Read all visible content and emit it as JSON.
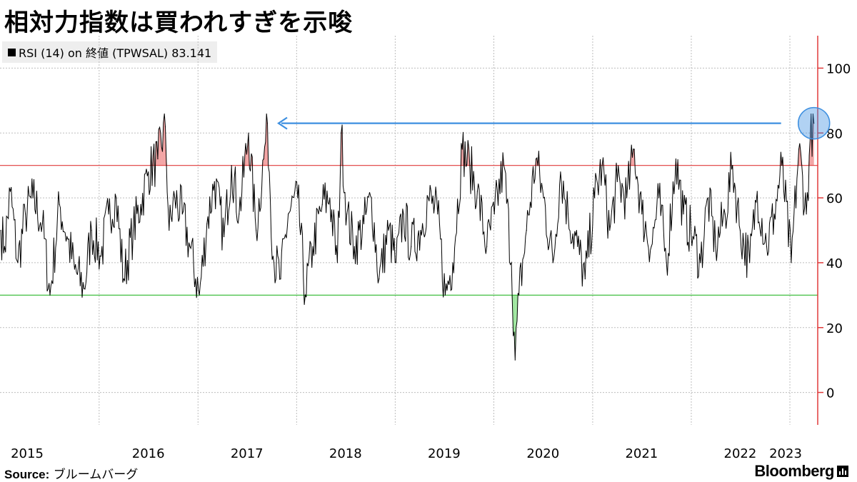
{
  "title": "相対力指数は買われすぎを示唆",
  "legend": {
    "label": "RSI (14)  on 終値 (TPWSAL) 83.141"
  },
  "source": {
    "label": "Source:",
    "text": "ブルームバーグ"
  },
  "brand": {
    "name": "Bloomberg"
  },
  "colors": {
    "line": "#000000",
    "overbought": "#e03a3a",
    "oversold": "#2db82d",
    "overbought_fill": "#f2a0a0",
    "oversold_fill": "#9be59b",
    "annotation": "#3d8fe0",
    "axis": "#e03a3a"
  },
  "chart_data": {
    "type": "line",
    "series": [
      {
        "name": "RSI (14)",
        "last_value": 83.141
      }
    ],
    "x": [
      "2015-01-02",
      "2015-01-16",
      "2015-02-06",
      "2015-03-06",
      "2015-04-03",
      "2015-05-01",
      "2015-06-05",
      "2015-07-03",
      "2015-08-07",
      "2015-09-04",
      "2015-10-02",
      "2015-11-06",
      "2015-12-04",
      "2016-01-08",
      "2016-02-05",
      "2016-03-04",
      "2016-04-01",
      "2016-05-06",
      "2016-06-03",
      "2016-07-01",
      "2016-08-05",
      "2016-09-02",
      "2016-09-16",
      "2016-10-07",
      "2016-11-04",
      "2016-12-02",
      "2017-01-06",
      "2017-02-03",
      "2017-03-03",
      "2017-04-07",
      "2017-05-05",
      "2017-06-02",
      "2017-07-07",
      "2017-08-04",
      "2017-09-01",
      "2017-09-15",
      "2017-10-06",
      "2017-11-03",
      "2017-12-01",
      "2018-01-05",
      "2018-02-02",
      "2018-03-02",
      "2018-04-06",
      "2018-05-04",
      "2018-06-01",
      "2018-06-15",
      "2018-07-06",
      "2018-08-03",
      "2018-09-07",
      "2018-10-05",
      "2018-11-02",
      "2018-12-07",
      "2019-01-04",
      "2019-02-01",
      "2019-03-01",
      "2019-04-05",
      "2019-05-03",
      "2019-06-07",
      "2019-07-05",
      "2019-08-02",
      "2019-09-06",
      "2019-10-04",
      "2019-11-01",
      "2019-12-06",
      "2020-01-03",
      "2020-02-07",
      "2020-03-06",
      "2020-03-20",
      "2020-04-03",
      "2020-05-01",
      "2020-06-05",
      "2020-07-03",
      "2020-08-07",
      "2020-09-04",
      "2020-10-02",
      "2020-11-06",
      "2020-12-04",
      "2021-01-08",
      "2021-02-05",
      "2021-03-05",
      "2021-04-02",
      "2021-05-07",
      "2021-06-04",
      "2021-07-02",
      "2021-08-06",
      "2021-09-03",
      "2021-10-01",
      "2021-11-05",
      "2021-12-03",
      "2022-01-07",
      "2022-02-04",
      "2022-03-04",
      "2022-04-01",
      "2022-05-06",
      "2022-06-03",
      "2022-07-01",
      "2022-08-05",
      "2022-09-02",
      "2022-10-07",
      "2022-11-04",
      "2022-12-02",
      "2023-01-06",
      "2023-02-03",
      "2023-03-03",
      "2023-03-17",
      "2023-03-31"
    ],
    "y": [
      50,
      45,
      62,
      40,
      55,
      60,
      52,
      30,
      58,
      48,
      38,
      32,
      50,
      42,
      55,
      60,
      35,
      50,
      58,
      68,
      72,
      82,
      50,
      60,
      55,
      45,
      30,
      52,
      65,
      48,
      70,
      55,
      80,
      50,
      72,
      83,
      42,
      35,
      55,
      60,
      30,
      45,
      58,
      60,
      40,
      80,
      55,
      45,
      52,
      60,
      35,
      50,
      40,
      55,
      45,
      50,
      60,
      55,
      30,
      40,
      75,
      70,
      62,
      45,
      55,
      70,
      40,
      10,
      30,
      50,
      72,
      60,
      40,
      68,
      55,
      45,
      35,
      60,
      70,
      50,
      65,
      60,
      75,
      55,
      45,
      60,
      40,
      72,
      55,
      48,
      40,
      60,
      45,
      55,
      70,
      50,
      40,
      62,
      45,
      55,
      70,
      40,
      75,
      55,
      78,
      83
    ],
    "x_ticks": [
      "2015",
      "2016",
      "2017",
      "2018",
      "2019",
      "2020",
      "2021",
      "2022",
      "2023"
    ],
    "y_ticks": [
      "0",
      "20",
      "40",
      "60",
      "80",
      "100"
    ],
    "ylim": [
      -10,
      110
    ],
    "overbought_level": 70,
    "oversold_level": 30,
    "grid": true,
    "y_axis_side": "right"
  }
}
